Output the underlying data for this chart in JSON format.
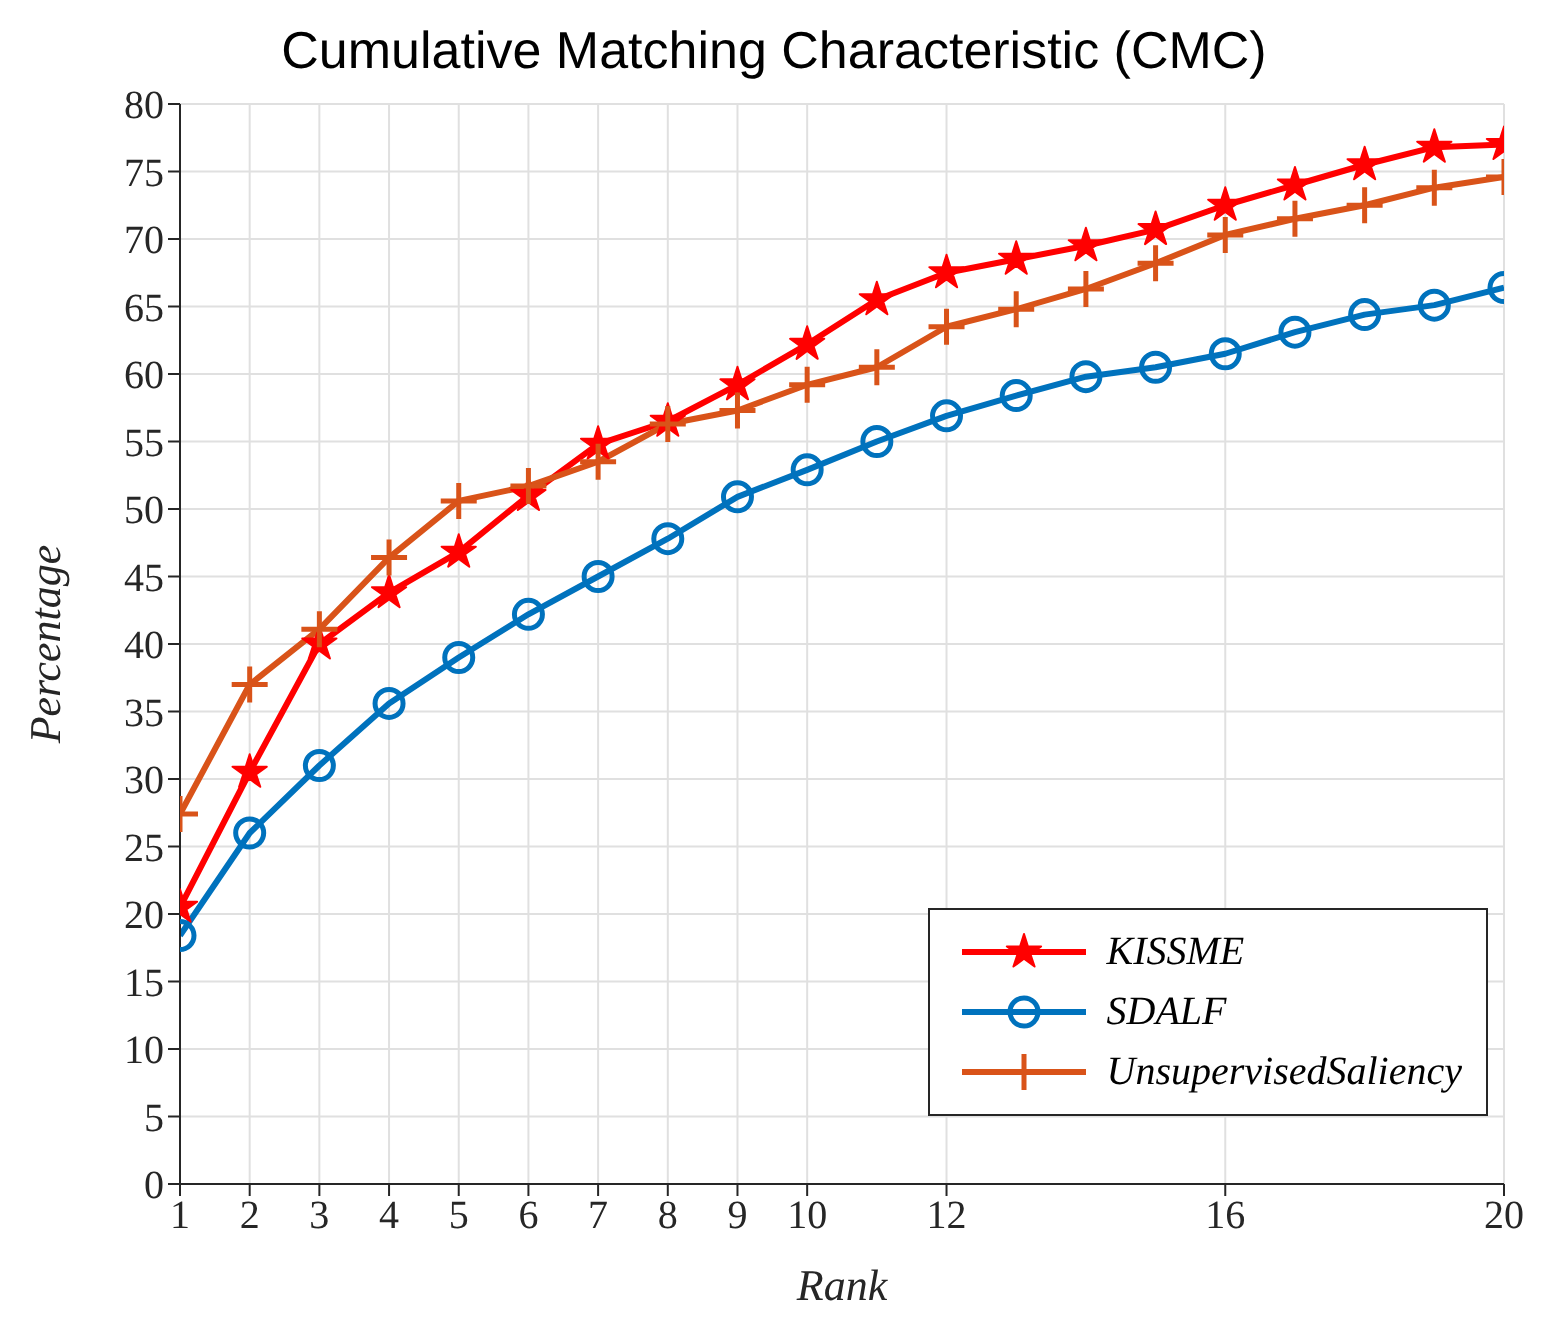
{
  "chart_data": {
    "type": "line",
    "title": "Cumulative Matching Characteristic (CMC)",
    "xlabel": "Rank",
    "ylabel": "Percentage",
    "x": [
      1,
      2,
      3,
      4,
      5,
      6,
      7,
      8,
      9,
      10,
      11,
      12,
      13,
      14,
      15,
      16,
      17,
      18,
      19,
      20
    ],
    "series": [
      {
        "name": "KISSME",
        "color": "#ff0000",
        "marker": "star",
        "values": [
          20.5,
          30.5,
          40,
          43.8,
          46.8,
          51,
          54.8,
          56.5,
          59.2,
          62.2,
          65.5,
          67.5,
          68.5,
          69.5,
          70.7,
          72.5,
          74,
          75.5,
          76.8,
          77
        ]
      },
      {
        "name": "SDALF",
        "color": "#0072bd",
        "marker": "circle",
        "values": [
          18.4,
          26,
          31,
          35.6,
          39,
          42.2,
          45,
          47.8,
          50.9,
          52.9,
          55,
          56.9,
          58.4,
          59.8,
          60.5,
          61.5,
          63.1,
          64.4,
          65.1,
          66.4
        ]
      },
      {
        "name": "UnsupervisedSaliency",
        "color": "#d95319",
        "marker": "cross",
        "values": [
          27.4,
          37,
          41.1,
          46.4,
          50.6,
          51.7,
          53.5,
          56.3,
          57.3,
          59.2,
          60.5,
          63.5,
          64.8,
          66.3,
          68.2,
          70.3,
          71.5,
          72.5,
          73.8,
          74.6
        ]
      }
    ],
    "xlim": [
      1,
      20
    ],
    "xticks": [
      1,
      2,
      3,
      4,
      5,
      6,
      7,
      8,
      9,
      10,
      12,
      16,
      20
    ],
    "ylim": [
      0,
      80
    ],
    "yticks": [
      0,
      5,
      10,
      15,
      20,
      25,
      30,
      35,
      40,
      45,
      50,
      55,
      60,
      65,
      70,
      75,
      80
    ],
    "grid": true,
    "legend": "bottom right",
    "line_style": "solid"
  }
}
